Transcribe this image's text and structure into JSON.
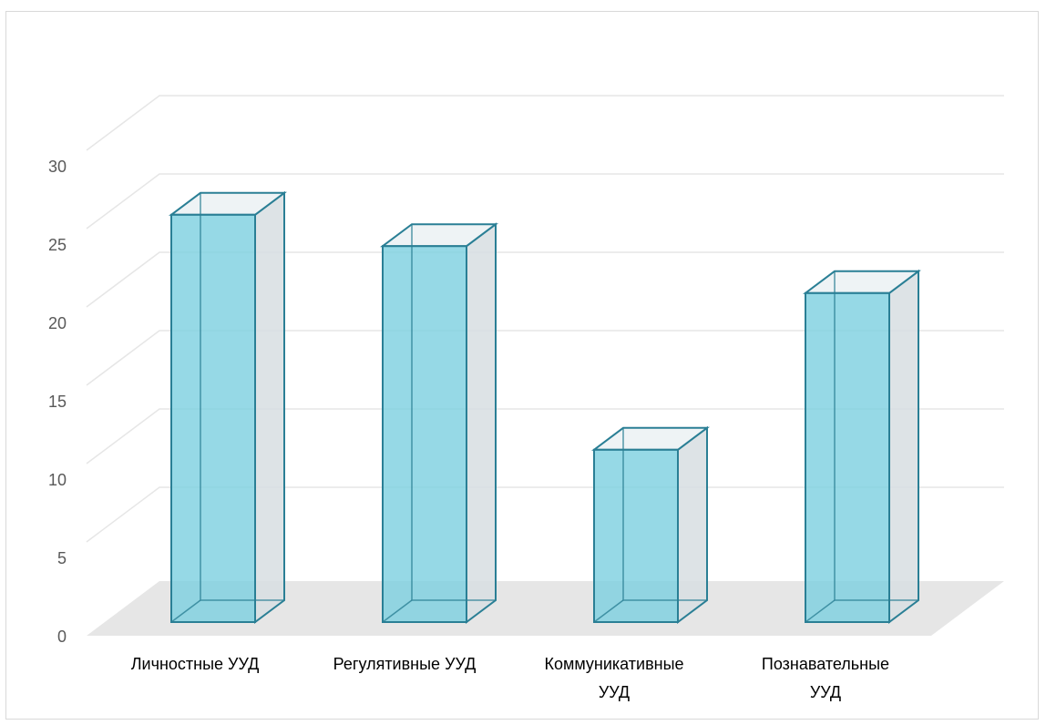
{
  "chart_data": {
    "type": "bar",
    "categories": [
      "Личностные УУД",
      "Регулятивные УУД",
      "Коммуникативные УУД",
      "Познавательные УУД"
    ],
    "category_lines": [
      [
        "Личностные УУД"
      ],
      [
        "Регулятивные УУД"
      ],
      [
        "Коммуникативные",
        "УУД"
      ],
      [
        "Познавательные",
        "УУД"
      ]
    ],
    "values": [
      26,
      24,
      11,
      21
    ],
    "ylim": [
      0,
      30
    ],
    "yticks": [
      "0",
      "5",
      "10",
      "15",
      "20",
      "25",
      "30"
    ],
    "title": "",
    "xlabel": "",
    "ylabel": "",
    "grid": true,
    "style": "3d-column",
    "colors": {
      "bar_front": "#7ccfe0",
      "bar_edge": "#2a7f95",
      "bar_side": "#d7dee2",
      "floor": "#e6e6e6",
      "grid": "#e6e6e6"
    }
  }
}
